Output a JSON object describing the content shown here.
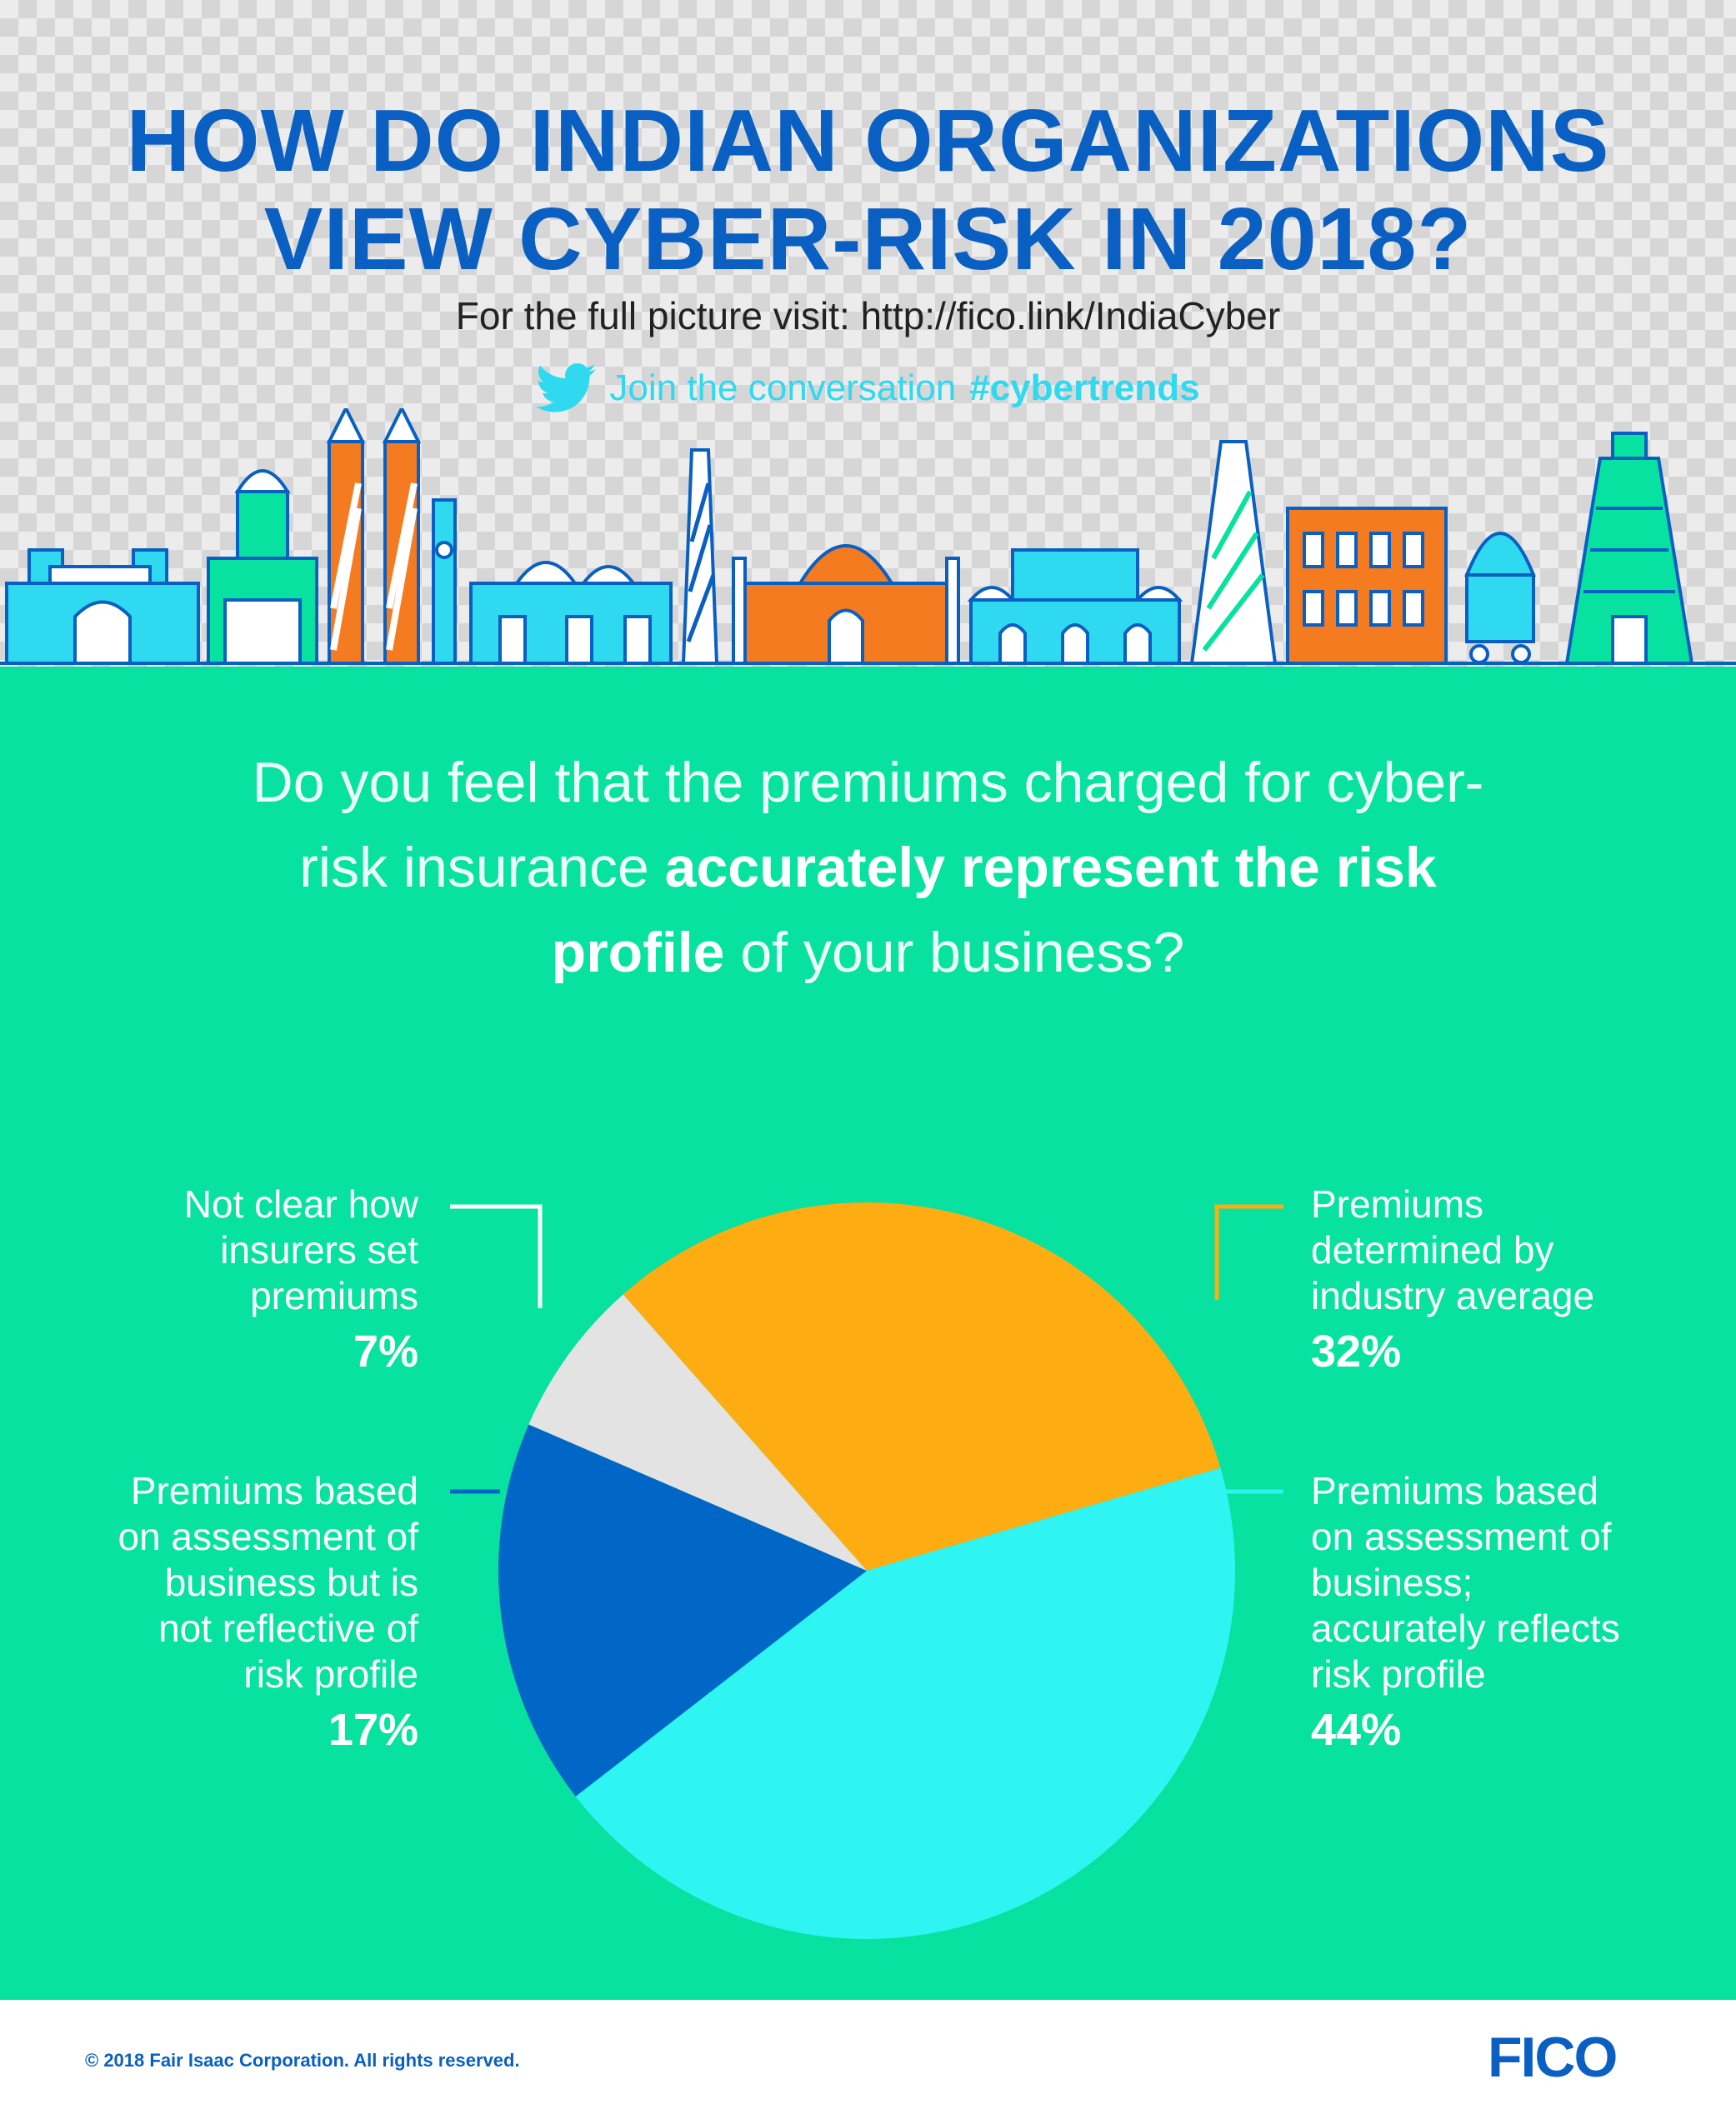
{
  "header": {
    "title_line1": "HOW DO INDIAN ORGANIZATIONS",
    "title_line2": "VIEW CYBER-RISK IN 2018?",
    "subtitle": "For the full picture visit: http://fico.link/IndiaCyber",
    "social_text": "Join the conversation",
    "hashtag": "#cybertrends",
    "social_icon": "twitter-bird-icon",
    "skyline_illustration": "indian-city-skyline-landmarks"
  },
  "question": {
    "part1": "Do you feel that the premiums charged for cyber-risk insurance ",
    "bold": "accurately represent the risk profile",
    "part2": " of your business?"
  },
  "chart_data": {
    "type": "pie",
    "title": "",
    "start": "top",
    "direction": "clockwise",
    "slices": [
      {
        "label": "Premiums determined by industry average",
        "value": 32,
        "value_label": "32%",
        "color": "#fdac12"
      },
      {
        "label": "Premiums based on assessment of business; accurately reflects risk profile",
        "value": 44,
        "value_label": "44%",
        "color": "#2ff5f2"
      },
      {
        "label": "Premiums based on assessment of business but is not reflective of risk profile",
        "value": 17,
        "value_label": "17%",
        "color": "#0067c6"
      },
      {
        "label": "Not clear how insurers set premiums",
        "value": 7,
        "value_label": "7%",
        "color": "#e3e3e3"
      }
    ]
  },
  "labels": {
    "industry": {
      "text": "Premiums\ndetermined by\nindustry average",
      "pct": "32%"
    },
    "accurate": {
      "text": "Premiums based\non assessment of\nbusiness;\naccurately reflects\nrisk profile",
      "pct": "44%"
    },
    "not_reflective": {
      "text": "Premiums based\non assessment of\nbusiness but is\nnot reflective of\nrisk profile",
      "pct": "17%"
    },
    "not_clear": {
      "text": "Not clear how\ninsurers set\npremiums",
      "pct": "7%"
    }
  },
  "colors": {
    "title_blue": "#0a5fc2",
    "main_green": "#07e2a0",
    "accent_cyan": "#2fd9f0",
    "skyline_orange": "#f47b20"
  },
  "footer": {
    "copyright": "© 2018 Fair Isaac Corporation. All rights reserved.",
    "logo_text": "FICO"
  }
}
